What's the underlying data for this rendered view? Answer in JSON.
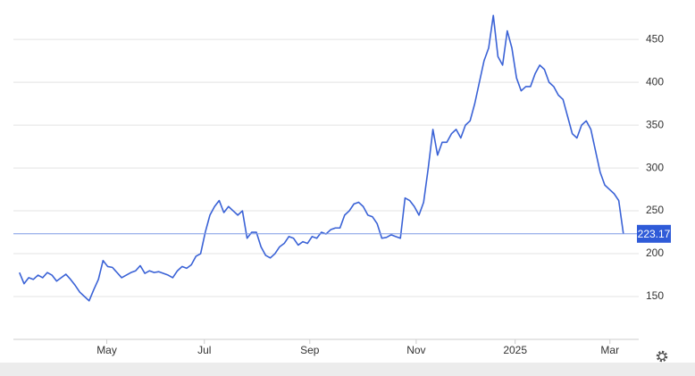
{
  "chart_data": {
    "type": "line",
    "x": [
      0,
      1,
      2,
      3,
      4,
      5,
      6,
      7,
      8,
      9,
      10,
      11,
      12,
      13,
      14,
      15,
      16,
      17,
      18,
      19,
      20,
      21,
      22,
      23,
      24,
      25,
      26,
      27,
      28,
      29,
      30,
      31,
      32,
      33,
      34,
      35,
      36,
      37,
      38,
      39,
      40,
      41,
      42,
      43,
      44,
      45,
      46,
      47,
      48,
      49,
      50,
      51,
      52,
      53,
      54,
      55,
      56,
      57,
      58,
      59,
      60,
      61,
      62,
      63,
      64,
      65,
      66,
      67,
      68,
      69,
      70,
      71,
      72,
      73,
      74,
      75,
      76,
      77,
      78,
      79,
      80,
      81,
      82,
      83,
      84,
      85,
      86,
      87,
      88,
      89,
      90,
      91,
      92,
      93,
      94,
      95,
      96,
      97,
      98,
      99,
      100,
      101,
      102,
      103,
      104,
      105,
      106,
      107,
      108,
      109,
      110,
      111,
      112,
      113,
      114,
      115,
      116,
      117,
      118,
      119,
      120,
      121,
      122,
      123,
      124,
      125,
      126,
      127,
      128,
      129,
      130
    ],
    "series": [
      {
        "color": "#3a62d6",
        "values": [
          178,
          165,
          172,
          170,
          175,
          172,
          178,
          175,
          168,
          172,
          176,
          170,
          163,
          155,
          150,
          145,
          158,
          170,
          192,
          185,
          184,
          178,
          172,
          175,
          178,
          180,
          186,
          177,
          180,
          178,
          179,
          177,
          175,
          172,
          180,
          185,
          183,
          187,
          197,
          200,
          225,
          245,
          255,
          262,
          248,
          255,
          250,
          245,
          250,
          218,
          225,
          225,
          208,
          198,
          195,
          200,
          208,
          212,
          220,
          218,
          210,
          214,
          212,
          220,
          218,
          225,
          223,
          228,
          230,
          230,
          245,
          250,
          258,
          260,
          255,
          245,
          243,
          235,
          218,
          219,
          222,
          220,
          218,
          265,
          262,
          255,
          245,
          260,
          300,
          345,
          315,
          330,
          330,
          340,
          345,
          335,
          350,
          355,
          375,
          400,
          425,
          440,
          478,
          430,
          420,
          460,
          440,
          405,
          390,
          395,
          395,
          410,
          420,
          415,
          400,
          395,
          385,
          380,
          360,
          340,
          335,
          350,
          355,
          345,
          320,
          295,
          280,
          275,
          270,
          262,
          223.17
        ]
      }
    ],
    "xlim": [
      -1.3,
      133.3
    ],
    "xticks": [
      {
        "value": 18.8,
        "label": "May"
      },
      {
        "value": 39.8,
        "label": "Jul"
      },
      {
        "value": 62.5,
        "label": "Sep"
      },
      {
        "value": 85.4,
        "label": "Nov"
      },
      {
        "value": 106.7,
        "label": "2025"
      },
      {
        "value": 127.1,
        "label": "Mar"
      }
    ],
    "ylim": [
      100,
      496
    ],
    "yticks": [
      150,
      200,
      250,
      300,
      350,
      400,
      450
    ],
    "grid": true
  }
}
